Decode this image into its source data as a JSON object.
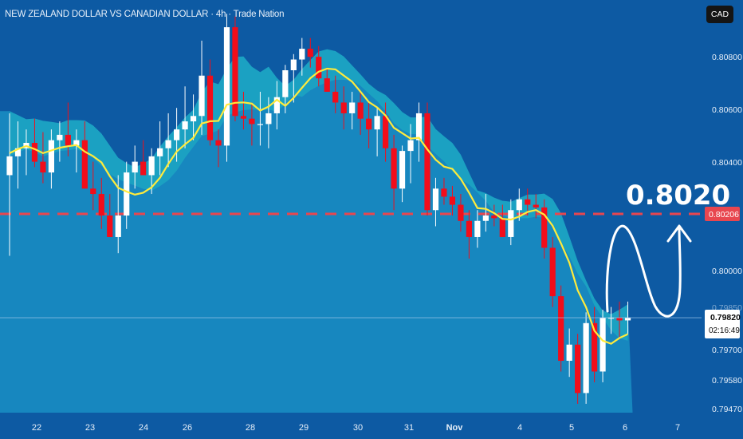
{
  "header": {
    "title": "NEW ZEALAND DOLLAR VS CANADIAN DOLLAR · 4h · Trade Nation",
    "currency_button": "CAD"
  },
  "annotation": {
    "target_label": "0.8020"
  },
  "price_scale": {
    "ticks": [
      "0.80800",
      "0.80600",
      "0.80400",
      "0.80000",
      "0.79700",
      "0.79580",
      "0.79470"
    ],
    "level_label": "0.80206",
    "current_price_label": "0.79820",
    "countdown_label": "02:16:49",
    "faded_label": "0.79850"
  },
  "time_scale": {
    "labels": [
      "22",
      "23",
      "24",
      "26",
      "28",
      "29",
      "30",
      "31",
      "Nov",
      "4",
      "5",
      "6",
      "7"
    ]
  },
  "colors": {
    "background": "#0d5aa3",
    "area_fill": "#1a8fc4",
    "band": "#1fb6c4",
    "bull_candle": "#ffffff",
    "bear_candle": "#f20d1a",
    "ma_line": "#ffeb3b",
    "level_line": "#e8464f",
    "arrow": "#ffffff"
  },
  "chart_data": {
    "type": "candlestick",
    "timeframe": "4h",
    "symbol": "NZDCAD",
    "resistance_level": 0.80206,
    "target": 0.802,
    "current_price": 0.7982,
    "ohlc": [
      [
        0.8035,
        0.8058,
        0.8005,
        0.8042
      ],
      [
        0.8042,
        0.8055,
        0.803,
        0.8045
      ],
      [
        0.8045,
        0.8052,
        0.8035,
        0.8047
      ],
      [
        0.8047,
        0.8056,
        0.8038,
        0.804
      ],
      [
        0.804,
        0.8051,
        0.8032,
        0.8036
      ],
      [
        0.8036,
        0.8052,
        0.803,
        0.8048
      ],
      [
        0.8048,
        0.8055,
        0.804,
        0.805
      ],
      [
        0.805,
        0.8062,
        0.8042,
        0.8046
      ],
      [
        0.8046,
        0.8052,
        0.8036,
        0.8048
      ],
      [
        0.8048,
        0.8055,
        0.803,
        0.803
      ],
      [
        0.803,
        0.804,
        0.8022,
        0.8028
      ],
      [
        0.8028,
        0.8034,
        0.8015,
        0.802
      ],
      [
        0.802,
        0.8028,
        0.8012,
        0.8012
      ],
      [
        0.8012,
        0.8035,
        0.8006,
        0.802
      ],
      [
        0.802,
        0.804,
        0.8015,
        0.8036
      ],
      [
        0.8036,
        0.8046,
        0.803,
        0.804
      ],
      [
        0.804,
        0.8048,
        0.8035,
        0.8035
      ],
      [
        0.8035,
        0.8045,
        0.8028,
        0.8042
      ],
      [
        0.8042,
        0.8055,
        0.8035,
        0.8045
      ],
      [
        0.8045,
        0.8058,
        0.8038,
        0.8048
      ],
      [
        0.8048,
        0.806,
        0.804,
        0.8052
      ],
      [
        0.8052,
        0.8068,
        0.8045,
        0.8055
      ],
      [
        0.8055,
        0.8065,
        0.8048,
        0.8057
      ],
      [
        0.8057,
        0.8085,
        0.805,
        0.8072
      ],
      [
        0.8072,
        0.8078,
        0.8046,
        0.8048
      ],
      [
        0.8048,
        0.8052,
        0.8038,
        0.8046
      ],
      [
        0.8046,
        0.8095,
        0.804,
        0.809
      ],
      [
        0.809,
        0.8094,
        0.8055,
        0.8057
      ],
      [
        0.8057,
        0.8066,
        0.8052,
        0.8056
      ],
      [
        0.8056,
        0.8062,
        0.8046,
        0.8054
      ],
      [
        0.8054,
        0.8066,
        0.8046,
        0.8054
      ],
      [
        0.8054,
        0.8064,
        0.8045,
        0.8058
      ],
      [
        0.8058,
        0.807,
        0.8052,
        0.8064
      ],
      [
        0.8064,
        0.8076,
        0.8058,
        0.8074
      ],
      [
        0.8074,
        0.808,
        0.8062,
        0.8078
      ],
      [
        0.8078,
        0.8086,
        0.8072,
        0.8082
      ],
      [
        0.8082,
        0.8086,
        0.8075,
        0.8079
      ],
      [
        0.8079,
        0.8083,
        0.8068,
        0.8071
      ],
      [
        0.8071,
        0.8075,
        0.8066,
        0.8066
      ],
      [
        0.8066,
        0.8072,
        0.8058,
        0.8062
      ],
      [
        0.8062,
        0.8068,
        0.8052,
        0.8058
      ],
      [
        0.8058,
        0.8066,
        0.8052,
        0.8062
      ],
      [
        0.8062,
        0.8066,
        0.805,
        0.8056
      ],
      [
        0.8056,
        0.8062,
        0.8045,
        0.8052
      ],
      [
        0.8052,
        0.806,
        0.8042,
        0.8057
      ],
      [
        0.8057,
        0.8062,
        0.804,
        0.8045
      ],
      [
        0.8045,
        0.805,
        0.8022,
        0.803
      ],
      [
        0.803,
        0.8046,
        0.8025,
        0.8044
      ],
      [
        0.8044,
        0.8054,
        0.8032,
        0.8048
      ],
      [
        0.8048,
        0.8062,
        0.804,
        0.8058
      ],
      [
        0.8058,
        0.8062,
        0.802,
        0.8022
      ],
      [
        0.8022,
        0.8034,
        0.8016,
        0.803
      ],
      [
        0.803,
        0.8034,
        0.8024,
        0.8027
      ],
      [
        0.8027,
        0.8031,
        0.802,
        0.8024
      ],
      [
        0.8024,
        0.8028,
        0.8014,
        0.8018
      ],
      [
        0.8018,
        0.8022,
        0.8004,
        0.8012
      ],
      [
        0.8012,
        0.8022,
        0.8008,
        0.8018
      ],
      [
        0.8018,
        0.8028,
        0.8014,
        0.802
      ],
      [
        0.802,
        0.8024,
        0.8016,
        0.8019
      ],
      [
        0.8019,
        0.8024,
        0.8012,
        0.8012
      ],
      [
        0.8012,
        0.8026,
        0.8009,
        0.8022
      ],
      [
        0.8022,
        0.803,
        0.8018,
        0.8026
      ],
      [
        0.8026,
        0.803,
        0.802,
        0.8024
      ],
      [
        0.8024,
        0.8028,
        0.8019,
        0.8023
      ],
      [
        0.8023,
        0.8026,
        0.8004,
        0.8008
      ],
      [
        0.8008,
        0.8012,
        0.7986,
        0.799
      ],
      [
        0.799,
        0.7994,
        0.7962,
        0.7966
      ],
      [
        0.7966,
        0.7978,
        0.796,
        0.7972
      ],
      [
        0.7972,
        0.7976,
        0.795,
        0.7954
      ],
      [
        0.7954,
        0.7984,
        0.795,
        0.798
      ],
      [
        0.798,
        0.7986,
        0.7958,
        0.7962
      ],
      [
        0.7962,
        0.7985,
        0.7958,
        0.7982
      ],
      [
        0.7982,
        0.7986,
        0.7976,
        0.7982
      ],
      [
        0.7982,
        0.7988,
        0.7974,
        0.7981
      ],
      [
        0.7981,
        0.7988,
        0.7976,
        0.7982
      ]
    ]
  }
}
